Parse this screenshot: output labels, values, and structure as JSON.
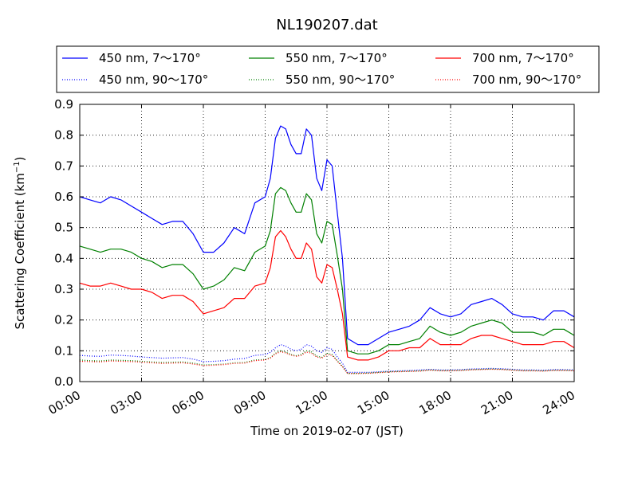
{
  "chart_data": {
    "type": "line",
    "title": "NL190207.dat",
    "xlabel": "Time on 2019-02-07 (JST)",
    "ylabel": "Scattering Coefficient (km",
    "ylabel_exponent": "−1",
    "ylabel_close": ")",
    "xlim": [
      "00:00",
      "24:00"
    ],
    "ylim": [
      0.0,
      0.9
    ],
    "x_ticks": [
      "00:00",
      "03:00",
      "06:00",
      "09:00",
      "12:00",
      "15:00",
      "18:00",
      "21:00",
      "24:00"
    ],
    "y_ticks": [
      "0.0",
      "0.1",
      "0.2",
      "0.3",
      "0.4",
      "0.5",
      "0.6",
      "0.7",
      "0.8",
      "0.9"
    ],
    "grid": true,
    "legend_position": "top, above plot",
    "x_hours": [
      0,
      0.5,
      1,
      1.5,
      2,
      2.5,
      3,
      3.5,
      4,
      4.5,
      5,
      5.5,
      6,
      6.5,
      7,
      7.5,
      8,
      8.5,
      9,
      9.25,
      9.5,
      9.75,
      10,
      10.25,
      10.5,
      10.75,
      11,
      11.25,
      11.5,
      11.75,
      12,
      12.25,
      12.5,
      12.75,
      13,
      13.5,
      14,
      14.5,
      15,
      15.5,
      16,
      16.5,
      17,
      17.5,
      18,
      18.5,
      19,
      19.5,
      20,
      20.5,
      21,
      21.5,
      22,
      22.5,
      23,
      23.5,
      24
    ],
    "series": [
      {
        "name": "450 nm, 7～170°",
        "color": "#0000ff",
        "style": "solid",
        "values": [
          0.6,
          0.59,
          0.58,
          0.6,
          0.59,
          0.57,
          0.55,
          0.53,
          0.51,
          0.52,
          0.52,
          0.48,
          0.42,
          0.42,
          0.45,
          0.5,
          0.48,
          0.58,
          0.6,
          0.66,
          0.79,
          0.83,
          0.82,
          0.77,
          0.74,
          0.74,
          0.82,
          0.8,
          0.66,
          0.62,
          0.72,
          0.7,
          0.55,
          0.4,
          0.14,
          0.12,
          0.12,
          0.14,
          0.16,
          0.17,
          0.18,
          0.2,
          0.24,
          0.22,
          0.21,
          0.22,
          0.25,
          0.26,
          0.27,
          0.25,
          0.22,
          0.21,
          0.21,
          0.2,
          0.23,
          0.23,
          0.21
        ]
      },
      {
        "name": "450 nm, 90～170°",
        "color": "#0000ff",
        "style": "dotted",
        "values": [
          0.085,
          0.083,
          0.082,
          0.086,
          0.085,
          0.083,
          0.08,
          0.078,
          0.076,
          0.077,
          0.078,
          0.073,
          0.065,
          0.066,
          0.068,
          0.073,
          0.075,
          0.085,
          0.088,
          0.095,
          0.11,
          0.12,
          0.115,
          0.105,
          0.1,
          0.105,
          0.12,
          0.115,
          0.1,
          0.095,
          0.11,
          0.105,
          0.08,
          0.06,
          0.03,
          0.03,
          0.03,
          0.032,
          0.034,
          0.035,
          0.036,
          0.038,
          0.04,
          0.038,
          0.038,
          0.039,
          0.041,
          0.042,
          0.043,
          0.042,
          0.04,
          0.038,
          0.038,
          0.037,
          0.039,
          0.039,
          0.038
        ]
      },
      {
        "name": "550 nm, 7～170°",
        "color": "#008000",
        "style": "solid",
        "values": [
          0.44,
          0.43,
          0.42,
          0.43,
          0.43,
          0.42,
          0.4,
          0.39,
          0.37,
          0.38,
          0.38,
          0.35,
          0.3,
          0.31,
          0.33,
          0.37,
          0.36,
          0.42,
          0.44,
          0.49,
          0.61,
          0.63,
          0.62,
          0.58,
          0.55,
          0.55,
          0.61,
          0.59,
          0.48,
          0.45,
          0.52,
          0.51,
          0.41,
          0.3,
          0.1,
          0.09,
          0.09,
          0.1,
          0.12,
          0.12,
          0.13,
          0.14,
          0.18,
          0.16,
          0.15,
          0.16,
          0.18,
          0.19,
          0.2,
          0.19,
          0.16,
          0.16,
          0.16,
          0.15,
          0.17,
          0.17,
          0.15
        ]
      },
      {
        "name": "550 nm, 90～170°",
        "color": "#008000",
        "style": "dotted",
        "values": [
          0.07,
          0.068,
          0.067,
          0.07,
          0.069,
          0.068,
          0.066,
          0.064,
          0.062,
          0.063,
          0.064,
          0.06,
          0.054,
          0.055,
          0.057,
          0.061,
          0.062,
          0.07,
          0.072,
          0.078,
          0.092,
          0.1,
          0.096,
          0.088,
          0.084,
          0.088,
          0.1,
          0.096,
          0.083,
          0.079,
          0.092,
          0.088,
          0.068,
          0.05,
          0.027,
          0.027,
          0.028,
          0.03,
          0.032,
          0.033,
          0.034,
          0.035,
          0.038,
          0.036,
          0.036,
          0.037,
          0.039,
          0.04,
          0.041,
          0.04,
          0.038,
          0.036,
          0.036,
          0.035,
          0.037,
          0.037,
          0.036
        ]
      },
      {
        "name": "700 nm, 7～170°",
        "color": "#ff0000",
        "style": "solid",
        "values": [
          0.32,
          0.31,
          0.31,
          0.32,
          0.31,
          0.3,
          0.3,
          0.29,
          0.27,
          0.28,
          0.28,
          0.26,
          0.22,
          0.23,
          0.24,
          0.27,
          0.27,
          0.31,
          0.32,
          0.37,
          0.47,
          0.49,
          0.47,
          0.43,
          0.4,
          0.4,
          0.45,
          0.43,
          0.34,
          0.32,
          0.38,
          0.37,
          0.3,
          0.22,
          0.08,
          0.07,
          0.07,
          0.08,
          0.1,
          0.1,
          0.11,
          0.11,
          0.14,
          0.12,
          0.12,
          0.12,
          0.14,
          0.15,
          0.15,
          0.14,
          0.13,
          0.12,
          0.12,
          0.12,
          0.13,
          0.13,
          0.11
        ]
      },
      {
        "name": "700 nm, 90～170°",
        "color": "#ff0000",
        "style": "dotted",
        "values": [
          0.066,
          0.065,
          0.064,
          0.067,
          0.066,
          0.065,
          0.063,
          0.061,
          0.059,
          0.06,
          0.061,
          0.057,
          0.052,
          0.053,
          0.055,
          0.059,
          0.06,
          0.068,
          0.07,
          0.076,
          0.09,
          0.097,
          0.093,
          0.086,
          0.082,
          0.085,
          0.096,
          0.092,
          0.08,
          0.076,
          0.088,
          0.085,
          0.066,
          0.048,
          0.026,
          0.026,
          0.027,
          0.029,
          0.031,
          0.032,
          0.033,
          0.034,
          0.037,
          0.035,
          0.035,
          0.036,
          0.038,
          0.039,
          0.04,
          0.039,
          0.037,
          0.035,
          0.035,
          0.034,
          0.036,
          0.036,
          0.035
        ]
      }
    ]
  }
}
